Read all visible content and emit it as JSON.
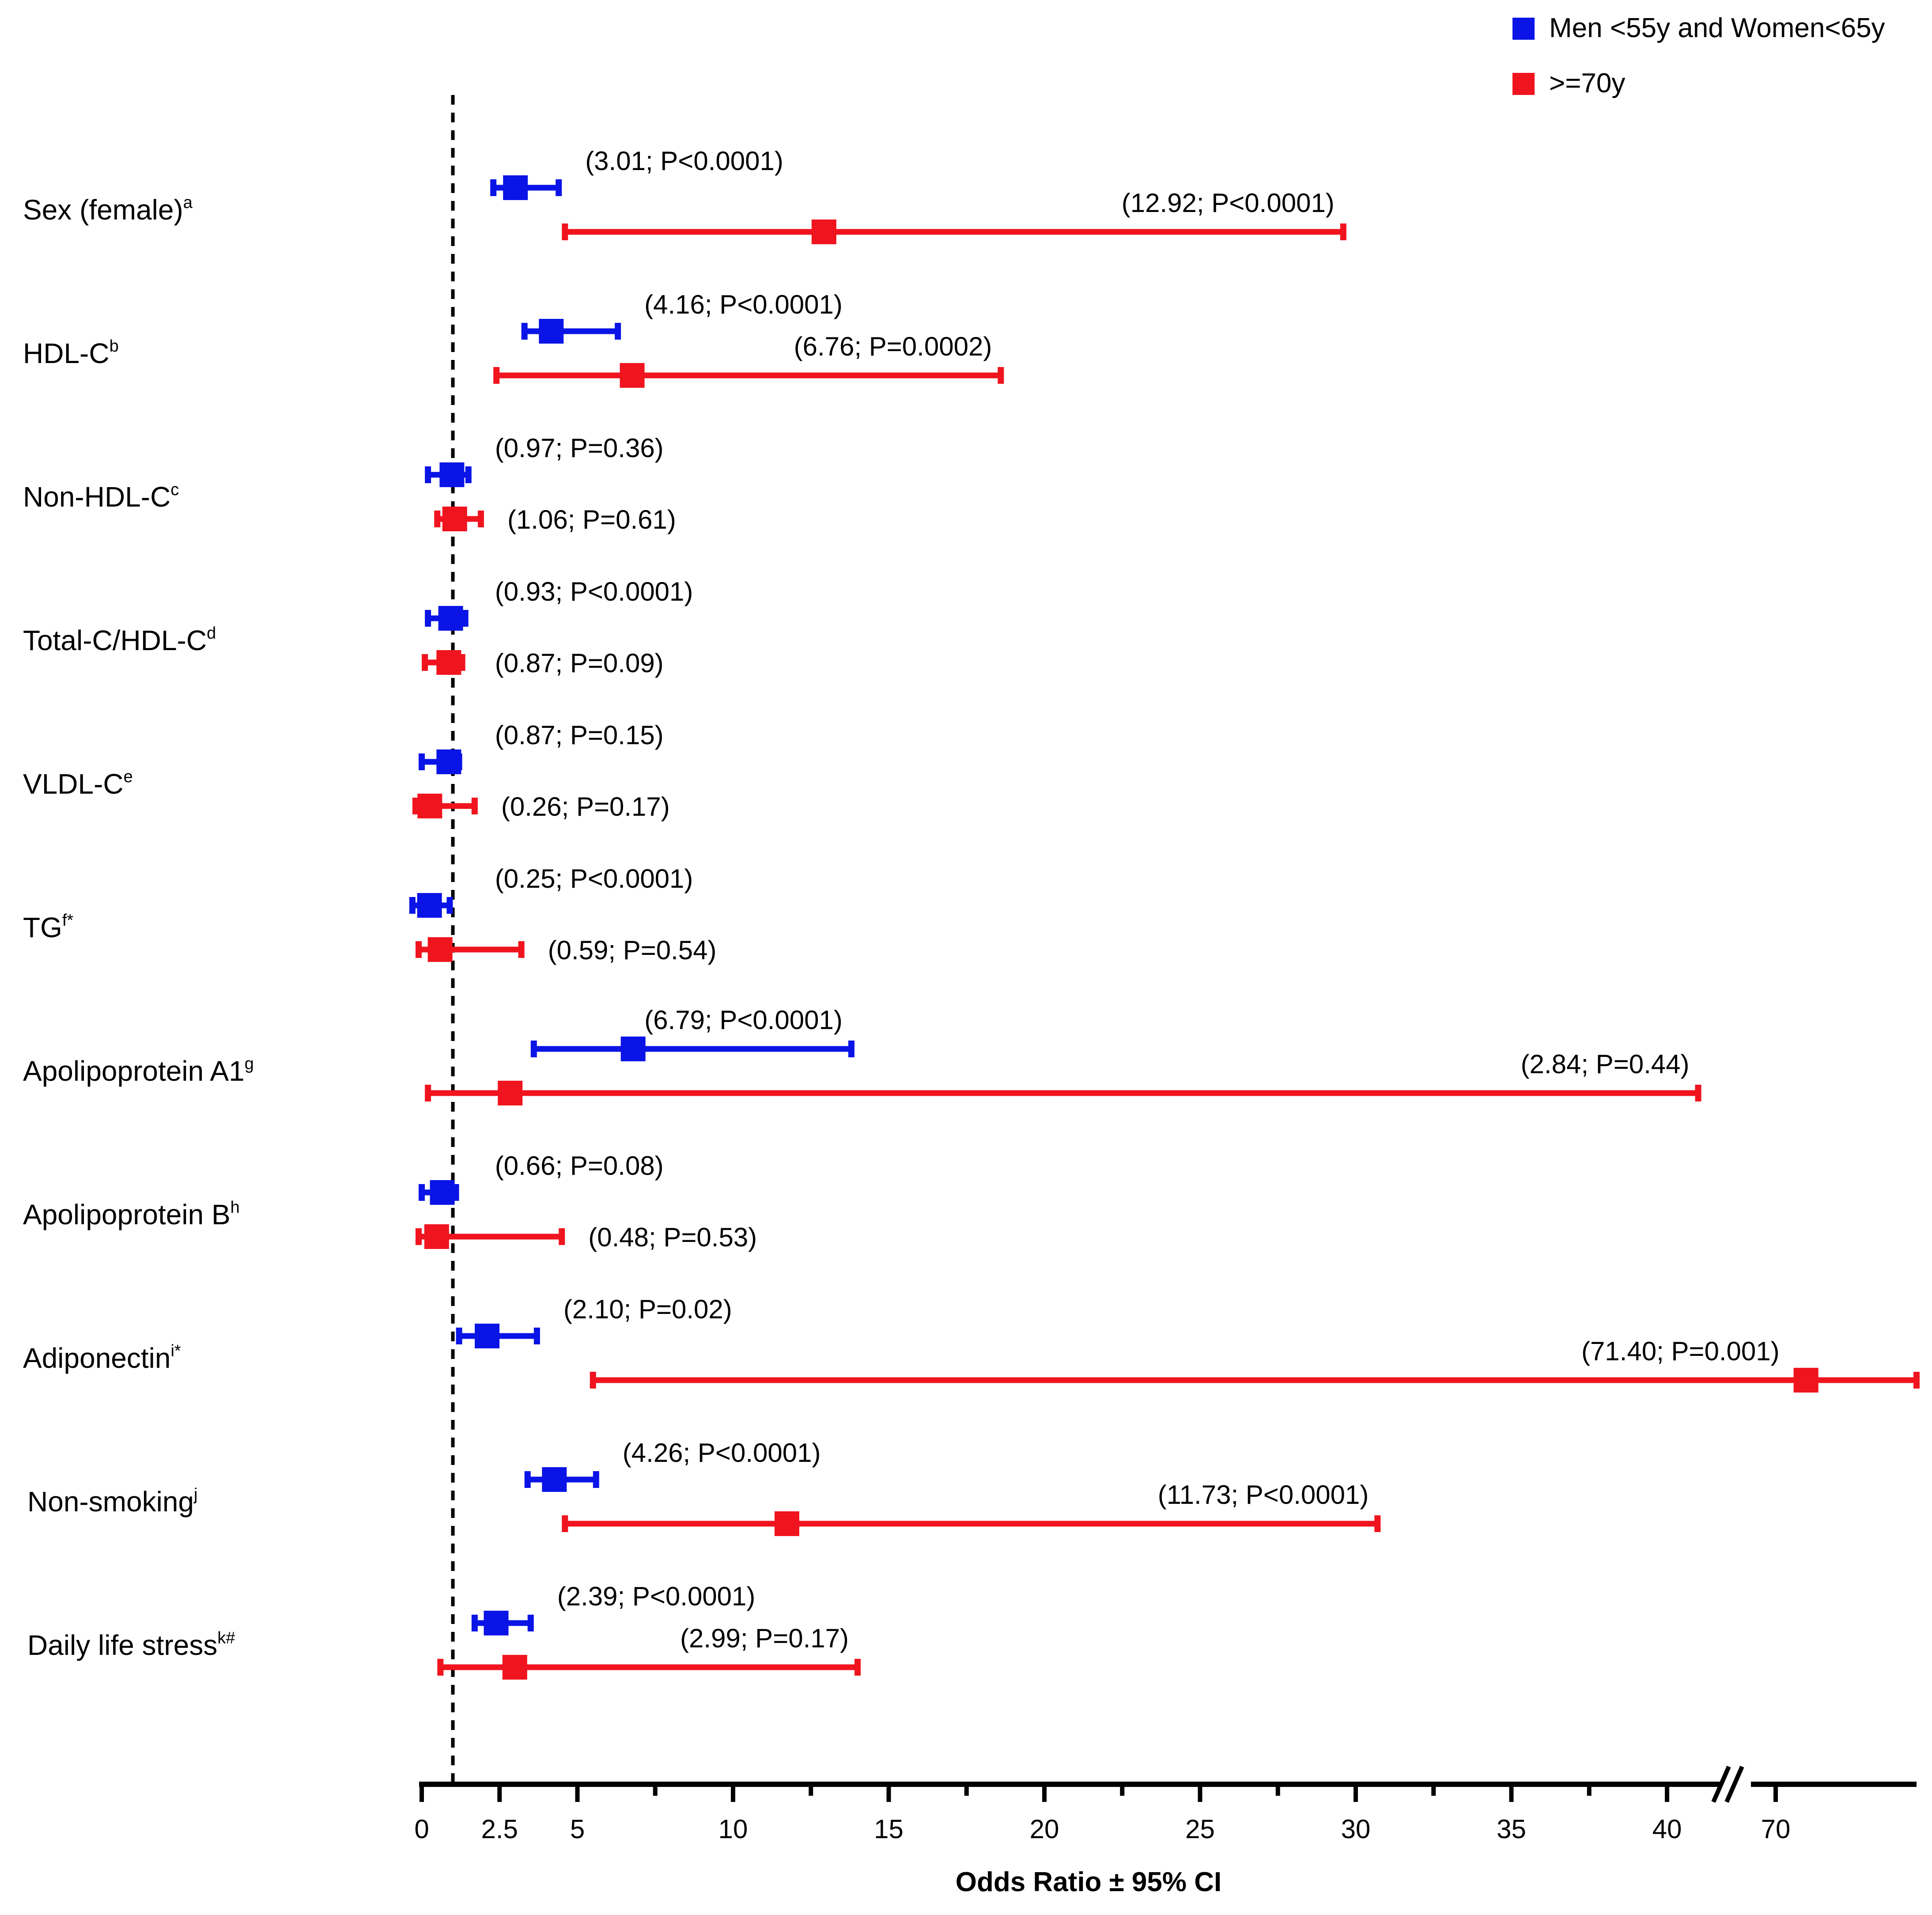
{
  "chart_data": {
    "type": "forest",
    "xlabel": "Odds Ratio ± 95% CI",
    "xlim": [
      0,
      48
    ],
    "axis_break": {
      "between": [
        41,
        43
      ],
      "upper_segment": [
        70,
        75
      ],
      "upper_label": "70"
    },
    "reference_line": 1,
    "ticks": [
      {
        "v": 0,
        "label": "0"
      },
      {
        "v": 2.5,
        "label": "2.5"
      },
      {
        "v": 5,
        "label": "5"
      },
      {
        "v": 10,
        "label": "10"
      },
      {
        "v": 15,
        "label": "15"
      },
      {
        "v": 20,
        "label": "20"
      },
      {
        "v": 25,
        "label": "25"
      },
      {
        "v": 30,
        "label": "30"
      },
      {
        "v": 35,
        "label": "35"
      },
      {
        "v": 40,
        "label": "40"
      },
      {
        "v": 70,
        "label": "70"
      }
    ],
    "minor_ticks": [
      7.5,
      12.5,
      17.5,
      22.5,
      27.5,
      32.5,
      37.5
    ],
    "legend": [
      {
        "name": "Men <55y and Women<65y",
        "color": "#0A14E6"
      },
      {
        "name": ">=70y",
        "color": "#F0141E"
      }
    ],
    "rows": [
      {
        "label": "Sex (female)",
        "sup": "a",
        "blue": {
          "or": 3.01,
          "lo": 2.3,
          "hi": 4.4,
          "text": "(3.01; P<0.0001)"
        },
        "red": {
          "or": 12.92,
          "lo": 4.6,
          "hi": 29.6,
          "text": "(12.92; P<0.0001)"
        }
      },
      {
        "label": "HDL-C",
        "sup": "b",
        "blue": {
          "or": 4.16,
          "lo": 3.3,
          "hi": 6.3,
          "text": "(4.16; P<0.0001)"
        },
        "red": {
          "or": 6.76,
          "lo": 2.4,
          "hi": 18.6,
          "text": "(6.76; P=0.0002)"
        }
      },
      {
        "label": "Non-HDL-C",
        "sup": "c",
        "blue": {
          "or": 0.97,
          "lo": 0.2,
          "hi": 1.5,
          "text": "(0.97; P=0.36)"
        },
        "red": {
          "or": 1.06,
          "lo": 0.5,
          "hi": 1.9,
          "text": "(1.06; P=0.61)"
        }
      },
      {
        "label": "Total-C/HDL-C",
        "sup": "d",
        "blue": {
          "or": 0.93,
          "lo": 0.2,
          "hi": 1.4,
          "text": "(0.93; P<0.0001)"
        },
        "red": {
          "or": 0.87,
          "lo": 0.1,
          "hi": 1.3,
          "text": "(0.87; P=0.09)"
        }
      },
      {
        "label": "VLDL-C",
        "sup": "e",
        "blue": {
          "or": 0.87,
          "lo": 0.0,
          "hi": 1.2,
          "text": "(0.87; P=0.15)"
        },
        "red": {
          "or": 0.26,
          "lo": -0.2,
          "hi": 1.7,
          "text": "(0.26; P=0.17)"
        }
      },
      {
        "label": "TG",
        "sup": "f*",
        "blue": {
          "or": 0.25,
          "lo": -0.3,
          "hi": 0.9,
          "text": "(0.25; P<0.0001)"
        },
        "red": {
          "or": 0.59,
          "lo": -0.1,
          "hi": 3.2,
          "text": "(0.59; P=0.54)"
        }
      },
      {
        "label": "Apolipoprotein A1",
        "sup": "g",
        "blue": {
          "or": 6.79,
          "lo": 3.6,
          "hi": 13.8,
          "text": "(6.79; P<0.0001)"
        },
        "red": {
          "or": 2.84,
          "lo": 0.2,
          "hi": 41.0,
          "text": "(2.84; P=0.44)"
        }
      },
      {
        "label": "Apolipoprotein B",
        "sup": "h",
        "blue": {
          "or": 0.66,
          "lo": 0.0,
          "hi": 1.1,
          "text": "(0.66; P=0.08)"
        },
        "red": {
          "or": 0.48,
          "lo": -0.1,
          "hi": 4.5,
          "text": "(0.48; P=0.53)"
        }
      },
      {
        "label": "Adiponectin",
        "sup": "i*",
        "blue": {
          "or": 2.1,
          "lo": 1.2,
          "hi": 3.7,
          "text": "(2.10; P=0.02)"
        },
        "red": {
          "or": 71.4,
          "lo": 5.5,
          "hi": 80,
          "text": "(71.40; P=0.001)"
        }
      },
      {
        "label": "Non-smoking",
        "sup": "j",
        "blue": {
          "or": 4.26,
          "lo": 3.4,
          "hi": 5.6,
          "text": "(4.26; P<0.0001)"
        },
        "red": {
          "or": 11.73,
          "lo": 4.6,
          "hi": 30.7,
          "text": "(11.73; P<0.0001)"
        }
      },
      {
        "label": "Daily life stress",
        "sup": "k#",
        "blue": {
          "or": 2.39,
          "lo": 1.7,
          "hi": 3.5,
          "text": "(2.39; P<0.0001)"
        },
        "red": {
          "or": 2.99,
          "lo": 0.6,
          "hi": 14.0,
          "text": "(2.99; P=0.17)"
        }
      }
    ]
  }
}
